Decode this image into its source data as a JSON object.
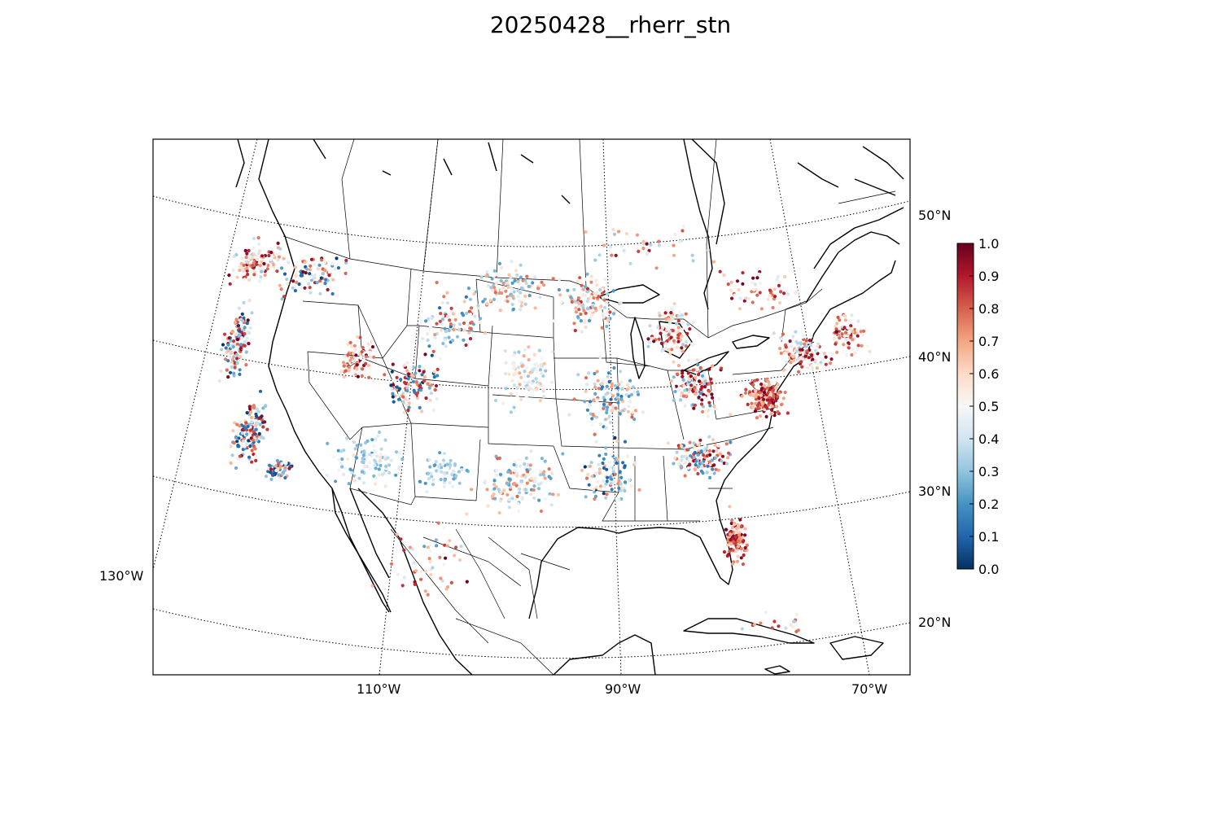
{
  "title": "20250428__rherr_stn",
  "map": {
    "projection": "lambert-conformal",
    "graticule": {
      "parallels": [
        20,
        30,
        40,
        50
      ],
      "meridians": [
        -130,
        -110,
        -90,
        -70
      ],
      "style": "dotted"
    },
    "lat_labels": [
      {
        "lat": 50,
        "label": "50°N"
      },
      {
        "lat": 40,
        "label": "40°N"
      },
      {
        "lat": 30,
        "label": "30°N"
      },
      {
        "lat": 20,
        "label": "20°N"
      }
    ],
    "lon_labels": [
      {
        "lon": -130,
        "label": "130°W"
      },
      {
        "lon": -110,
        "label": "110°W"
      },
      {
        "lon": -90,
        "label": "90°W"
      },
      {
        "lon": -70,
        "label": "70°W"
      }
    ],
    "boundaries": [
      "coastlines",
      "country borders",
      "state/province borders"
    ],
    "marker": "circle",
    "field": "rherr_stn"
  },
  "colorbar": {
    "colormap": "RdBu_r",
    "min": 0.0,
    "max": 1.0,
    "ticks": [
      "0.0",
      "0.1",
      "0.2",
      "0.3",
      "0.4",
      "0.5",
      "0.6",
      "0.7",
      "0.8",
      "0.9",
      "1.0"
    ],
    "colors": [
      "#053061",
      "#2166ac",
      "#4393c3",
      "#92c5de",
      "#d1e5f0",
      "#f7f7f7",
      "#fddbc7",
      "#f4a582",
      "#d6604d",
      "#b2182b",
      "#67001f"
    ]
  },
  "chart_data": {
    "type": "scatter",
    "title": "20250428__rherr_stn",
    "xlabel": "",
    "ylabel": "",
    "value_range": [
      0.0,
      1.0
    ],
    "regions": [
      {
        "lon": -122.5,
        "lat": 49.5,
        "spread": [
          3.0,
          2.0
        ],
        "n": 110,
        "value_range": [
          0.3,
          1.0
        ]
      },
      {
        "lon": -117.0,
        "lat": 48.0,
        "spread": [
          4.0,
          2.0
        ],
        "n": 90,
        "value_range": [
          0.0,
          1.0
        ]
      },
      {
        "lon": -122.5,
        "lat": 44.0,
        "spread": [
          1.5,
          3.5
        ],
        "n": 130,
        "value_range": [
          0.0,
          1.0
        ]
      },
      {
        "lon": -120.0,
        "lat": 37.0,
        "spread": [
          2.0,
          3.5
        ],
        "n": 150,
        "value_range": [
          0.0,
          1.0
        ]
      },
      {
        "lon": -117.0,
        "lat": 34.0,
        "spread": [
          1.5,
          1.0
        ],
        "n": 60,
        "value_range": [
          0.0,
          1.0
        ]
      },
      {
        "lon": -112.0,
        "lat": 41.5,
        "spread": [
          2.0,
          2.0
        ],
        "n": 90,
        "value_range": [
          0.4,
          1.0
        ]
      },
      {
        "lon": -107.0,
        "lat": 39.5,
        "spread": [
          3.0,
          2.5
        ],
        "n": 120,
        "value_range": [
          0.0,
          1.0
        ]
      },
      {
        "lon": -110.0,
        "lat": 34.0,
        "spread": [
          4.0,
          2.5
        ],
        "n": 110,
        "value_range": [
          0.2,
          0.6
        ]
      },
      {
        "lon": -104.0,
        "lat": 33.0,
        "spread": [
          2.5,
          2.0
        ],
        "n": 60,
        "value_range": [
          0.2,
          0.5
        ]
      },
      {
        "lon": -100.0,
        "lat": 46.0,
        "spread": [
          4.0,
          2.5
        ],
        "n": 100,
        "value_range": [
          0.2,
          0.8
        ]
      },
      {
        "lon": -104.0,
        "lat": 44.0,
        "spread": [
          4.0,
          3.0
        ],
        "n": 90,
        "value_range": [
          0.1,
          0.9
        ]
      },
      {
        "lon": -98.0,
        "lat": 39.5,
        "spread": [
          3.0,
          3.0
        ],
        "n": 100,
        "value_range": [
          0.3,
          0.7
        ]
      },
      {
        "lon": -98.0,
        "lat": 32.0,
        "spread": [
          4.0,
          3.0
        ],
        "n": 140,
        "value_range": [
          0.2,
          0.8
        ]
      },
      {
        "lon": -93.0,
        "lat": 45.0,
        "spread": [
          3.5,
          3.0
        ],
        "n": 120,
        "value_range": [
          0.2,
          0.9
        ]
      },
      {
        "lon": -91.0,
        "lat": 38.0,
        "spread": [
          3.5,
          3.5
        ],
        "n": 120,
        "value_range": [
          0.1,
          0.8
        ]
      },
      {
        "lon": -91.0,
        "lat": 32.5,
        "spread": [
          3.0,
          3.0
        ],
        "n": 100,
        "value_range": [
          0.0,
          0.8
        ]
      },
      {
        "lon": -86.0,
        "lat": 43.0,
        "spread": [
          2.5,
          2.5
        ],
        "n": 110,
        "value_range": [
          0.3,
          1.0
        ]
      },
      {
        "lon": -84.0,
        "lat": 39.0,
        "spread": [
          3.0,
          2.5
        ],
        "n": 130,
        "value_range": [
          0.2,
          1.0
        ]
      },
      {
        "lon": -78.5,
        "lat": 38.5,
        "spread": [
          2.0,
          1.8
        ],
        "n": 140,
        "value_range": [
          0.6,
          1.0
        ]
      },
      {
        "lon": -84.0,
        "lat": 34.0,
        "spread": [
          3.0,
          2.0
        ],
        "n": 140,
        "value_range": [
          0.1,
          1.0
        ]
      },
      {
        "lon": -81.5,
        "lat": 28.0,
        "spread": [
          1.2,
          2.5
        ],
        "n": 100,
        "value_range": [
          0.6,
          1.0
        ]
      },
      {
        "lon": -75.0,
        "lat": 42.0,
        "spread": [
          3.0,
          2.0
        ],
        "n": 130,
        "value_range": [
          0.3,
          1.0
        ]
      },
      {
        "lon": -71.0,
        "lat": 43.5,
        "spread": [
          2.0,
          2.0
        ],
        "n": 80,
        "value_range": [
          0.4,
          1.0
        ]
      },
      {
        "lon": -78.0,
        "lat": 46.5,
        "spread": [
          5.0,
          2.0
        ],
        "n": 60,
        "value_range": [
          0.4,
          1.0
        ]
      },
      {
        "lon": -88.0,
        "lat": 49.0,
        "spread": [
          8.0,
          2.0
        ],
        "n": 40,
        "value_range": [
          0.3,
          1.0
        ]
      },
      {
        "lon": -104.0,
        "lat": 26.0,
        "spread": [
          6.0,
          4.0
        ],
        "n": 50,
        "value_range": [
          0.2,
          1.0
        ]
      },
      {
        "lon": -79.0,
        "lat": 22.0,
        "spread": [
          4.0,
          1.0
        ],
        "n": 18,
        "value_range": [
          0.3,
          1.0
        ]
      }
    ]
  }
}
